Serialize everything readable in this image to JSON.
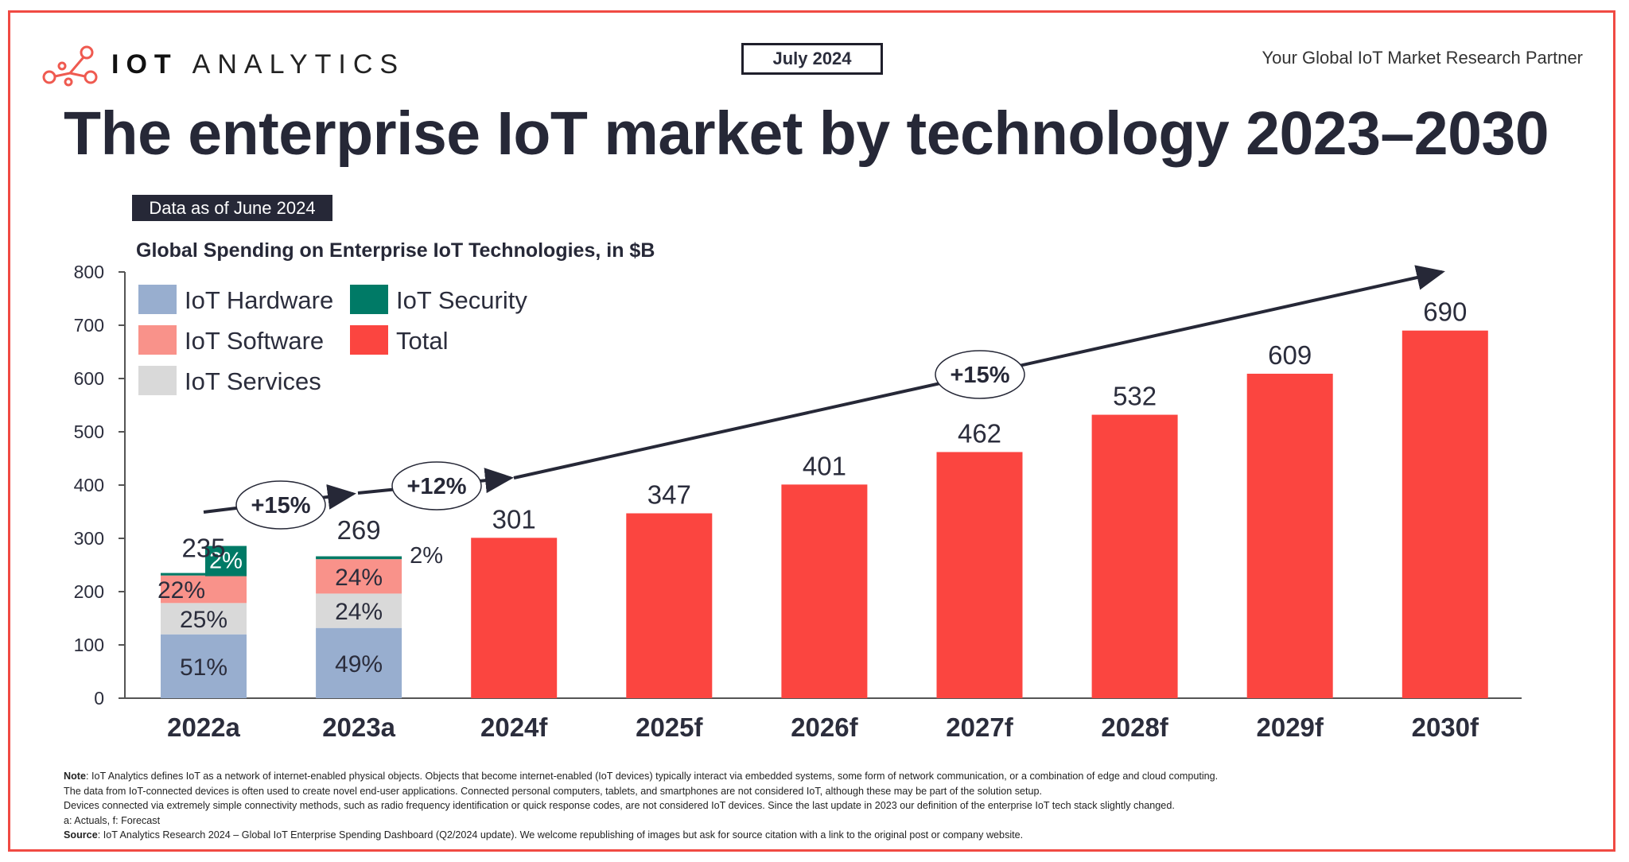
{
  "header": {
    "logo_text": "IOT ANALYTICS",
    "date_label": "July 2024",
    "tagline": "Your Global IoT Market Research Partner",
    "title": "The enterprise IoT market by technology 2023–2030",
    "data_as_of": "Data as of June 2024"
  },
  "chart_data": {
    "type": "bar",
    "title": "Global Spending on Enterprise IoT Technologies, in $B",
    "xlabel": "",
    "ylabel": "",
    "ylim": [
      0,
      800
    ],
    "yticks": [
      "0",
      "100",
      "200",
      "300",
      "400",
      "500",
      "600",
      "700",
      "800"
    ],
    "categories": [
      "2022a",
      "2023a",
      "2024f",
      "2025f",
      "2026f",
      "2027f",
      "2028f",
      "2029f",
      "2030f"
    ],
    "totals": [
      235,
      269,
      301,
      347,
      401,
      462,
      532,
      609,
      690
    ],
    "total_labels": [
      "235",
      "269",
      "301",
      "347",
      "401",
      "462",
      "532",
      "609",
      "690"
    ],
    "stacked_breakdown": [
      {
        "category": "2022a",
        "shares": {
          "IoT Hardware": 51,
          "IoT Services": 25,
          "IoT Software": 22,
          "IoT Security": 2
        },
        "labels": {
          "IoT Hardware": "51%",
          "IoT Services": "25%",
          "IoT Software": "22%",
          "IoT Security": "2%"
        }
      },
      {
        "category": "2023a",
        "shares": {
          "IoT Hardware": 49,
          "IoT Services": 24,
          "IoT Software": 24,
          "IoT Security": 2
        },
        "labels": {
          "IoT Hardware": "49%",
          "IoT Services": "24%",
          "IoT Software": "24%",
          "IoT Security": "2%"
        }
      }
    ],
    "legend": [
      {
        "name": "IoT Hardware",
        "color": "#98aecf"
      },
      {
        "name": "IoT Security",
        "color": "#007a66"
      },
      {
        "name": "IoT Software",
        "color": "#f9928a"
      },
      {
        "name": "Total",
        "color": "#fb4540"
      },
      {
        "name": "IoT Services",
        "color": "#d9d9d9"
      }
    ],
    "legend_position": "top-left",
    "growth_annotations": [
      {
        "label": "+15%",
        "from": "2022a",
        "to": "2023a"
      },
      {
        "label": "+12%",
        "from": "2023a",
        "to": "2024f"
      },
      {
        "label": "+15%",
        "from": "2024f",
        "to": "2030f"
      }
    ],
    "grid": false
  },
  "footer": {
    "note_label": "Note",
    "note_lines": [
      ": IoT Analytics defines IoT as a network of internet-enabled physical objects. Objects that become internet-enabled (IoT devices) typically interact via embedded systems, some form of network communication, or a combination of edge and cloud computing.",
      "The data from IoT-connected devices is often used to create novel end-user applications. Connected personal computers, tablets, and smartphones are not considered IoT, although these may be part of the solution setup.",
      "Devices connected via extremely simple connectivity methods, such as radio frequency identification or quick response codes, are not considered IoT devices. Since the last update in 2023 our definition of the enterprise IoT tech stack slightly changed.",
      "a: Actuals, f: Forecast"
    ],
    "source_label": "Source",
    "source_text": ": IoT Analytics Research 2024 – Global IoT Enterprise Spending Dashboard (Q2/2024 update). We welcome republishing of images but ask for source citation with a link to the original post or company website."
  }
}
